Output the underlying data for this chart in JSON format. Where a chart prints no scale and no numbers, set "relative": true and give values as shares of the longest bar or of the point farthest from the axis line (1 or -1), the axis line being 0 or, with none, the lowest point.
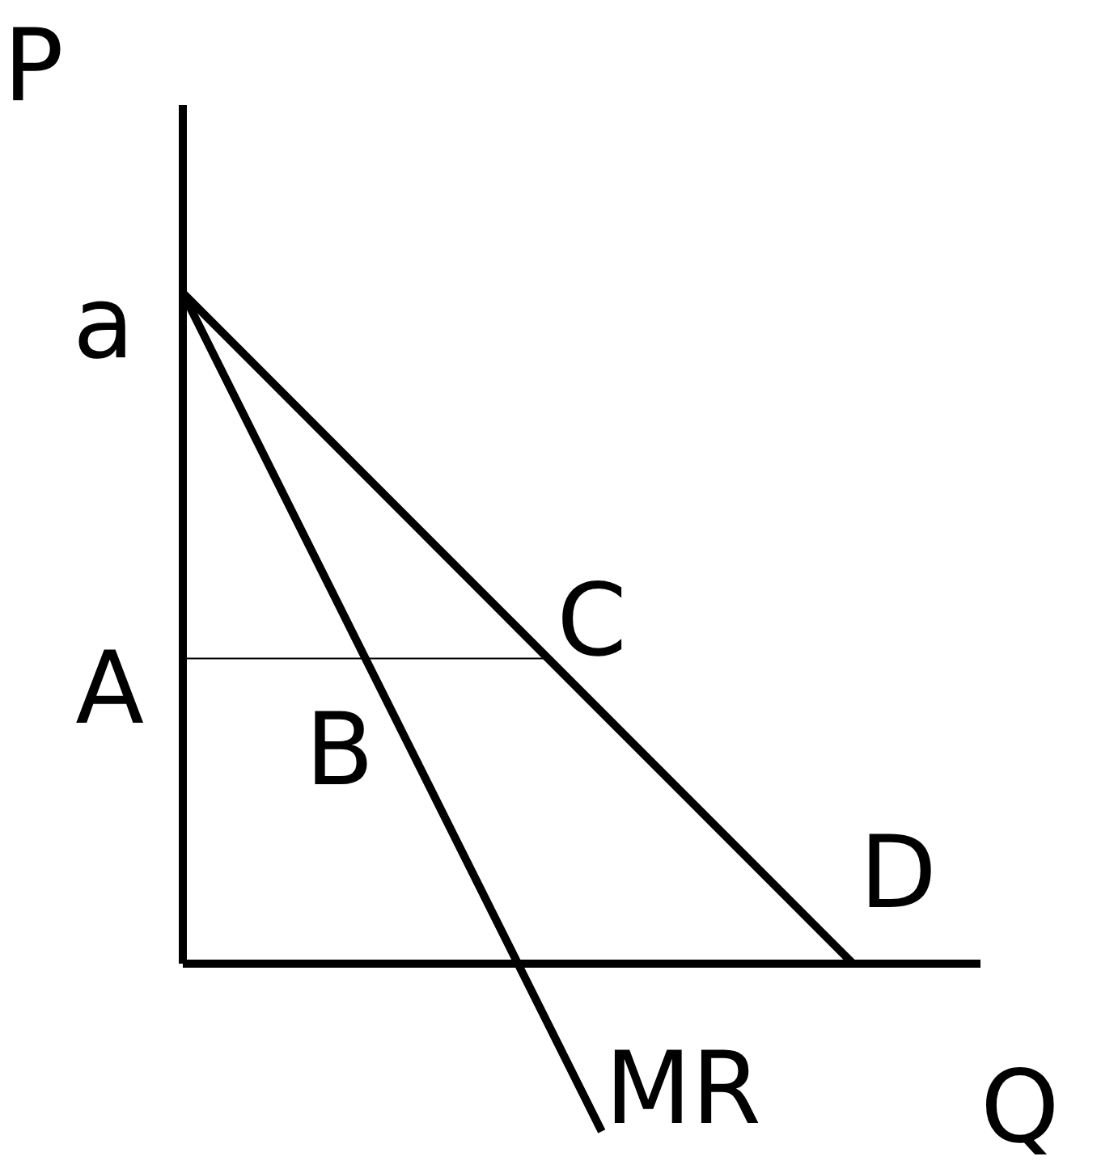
{
  "chart_data": {
    "type": "line",
    "relative": true,
    "xlabel": "Q",
    "ylabel": "P",
    "categories": [
      null,
      null,
      null,
      null,
      null,
      null,
      null,
      null,
      null,
      null
    ],
    "series": [
      {
        "name": "D",
        "color": "#000000",
        "values": [
          1,
          0.875,
          0.75,
          0.625,
          0.5,
          0.375,
          0.25,
          0.125,
          0,
          null
        ]
      },
      {
        "name": "MR",
        "color": "#000000",
        "values": [
          1,
          0.75,
          0.5,
          0.25,
          0,
          -0.25,
          null,
          null,
          null,
          null
        ]
      }
    ],
    "ref_lines": [
      {
        "axis": "y",
        "value": 0.455,
        "label": "A"
      }
    ],
    "annotations": [
      "a",
      "B",
      "C"
    ],
    "legend": false,
    "marker": "none",
    "line_style": "solid"
  }
}
